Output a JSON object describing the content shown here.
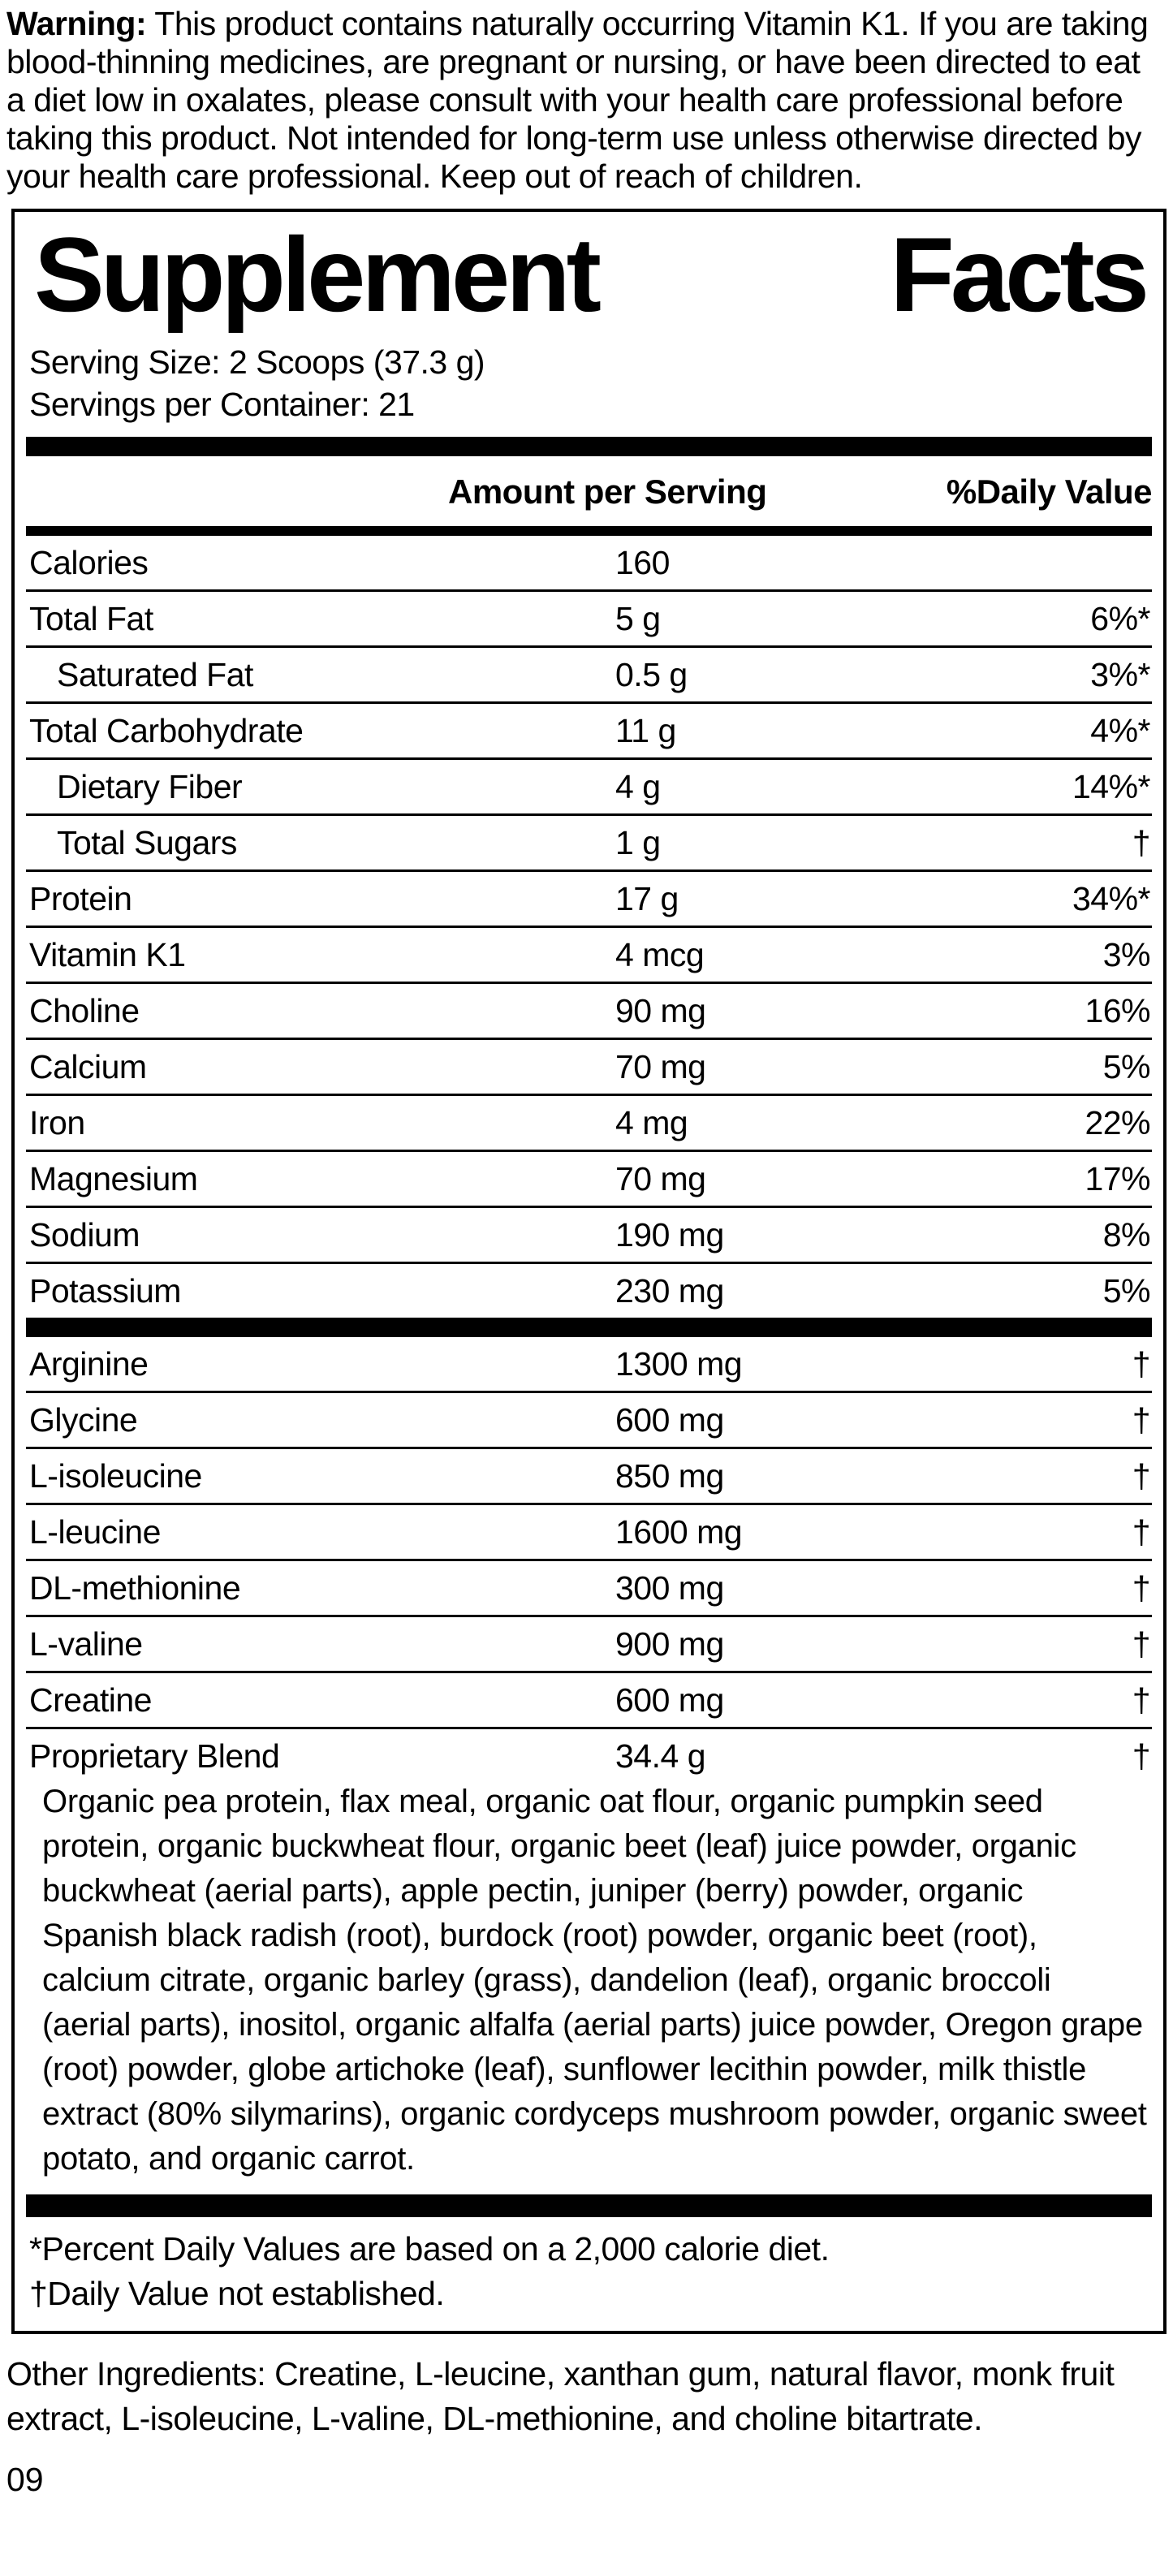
{
  "warning": {
    "label": "Warning:",
    "text": " This product contains naturally occurring Vitamin K1. If you are taking blood-thinning medicines, are pregnant or nursing, or have been directed to eat a diet low in oxalates, please consult with your health care professional before taking this product. Not intended for long-term use unless otherwise directed by your health care professional. Keep out of reach of children."
  },
  "panel": {
    "title": {
      "word1": "Supplement",
      "word2": "Facts"
    },
    "serving_size": "Serving Size: 2 Scoops (37.3 g)",
    "servings_per_container": "Servings per Container: 21",
    "header": {
      "amount": "Amount per Serving",
      "dv": "%Daily Value"
    },
    "rows": [
      {
        "name": "Calories",
        "amount": "160",
        "dv": "",
        "indent": false
      },
      {
        "name": "Total Fat",
        "amount": "5 g",
        "dv": "6%*",
        "indent": false
      },
      {
        "name": "Saturated Fat",
        "amount": "0.5 g",
        "dv": "3%*",
        "indent": true
      },
      {
        "name": "Total Carbohydrate",
        "amount": "11 g",
        "dv": "4%*",
        "indent": false
      },
      {
        "name": "Dietary Fiber",
        "amount": "4 g",
        "dv": "14%*",
        "indent": true
      },
      {
        "name": "Total Sugars",
        "amount": "1 g",
        "dv": "†",
        "indent": true
      },
      {
        "name": "Protein",
        "amount": "17 g",
        "dv": "34%*",
        "indent": false
      },
      {
        "name": "Vitamin K1",
        "amount": "4 mcg",
        "dv": "3%",
        "indent": false
      },
      {
        "name": "Choline",
        "amount": "90 mg",
        "dv": "16%",
        "indent": false
      },
      {
        "name": "Calcium",
        "amount": "70 mg",
        "dv": "5%",
        "indent": false
      },
      {
        "name": "Iron",
        "amount": "4 mg",
        "dv": "22%",
        "indent": false
      },
      {
        "name": "Magnesium",
        "amount": "70 mg",
        "dv": "17%",
        "indent": false
      },
      {
        "name": "Sodium",
        "amount": "190 mg",
        "dv": "8%",
        "indent": false
      },
      {
        "name": "Potassium",
        "amount": "230 mg",
        "dv": "5%",
        "indent": false
      }
    ],
    "amino_rows": [
      {
        "name": "Arginine",
        "amount": "1300 mg",
        "dv": "†",
        "indent": false
      },
      {
        "name": "Glycine",
        "amount": "600 mg",
        "dv": "†",
        "indent": false
      },
      {
        "name": "L-isoleucine",
        "amount": "850 mg",
        "dv": "†",
        "indent": false
      },
      {
        "name": "L-leucine",
        "amount": "1600 mg",
        "dv": "†",
        "indent": false
      },
      {
        "name": "DL-methionine",
        "amount": "300 mg",
        "dv": "†",
        "indent": false
      },
      {
        "name": "L-valine",
        "amount": "900 mg",
        "dv": "†",
        "indent": false
      },
      {
        "name": "Creatine",
        "amount": "600 mg",
        "dv": "†",
        "indent": false
      }
    ],
    "proprietary": {
      "name": "Proprietary Blend",
      "amount": "34.4 g",
      "dv": "†",
      "description": "Organic pea protein, flax meal, organic oat flour, organic pumpkin seed protein, organic buckwheat flour, organic beet (leaf) juice powder, organic buckwheat (aerial parts), apple pectin, juniper (berry) powder, organic Spanish black radish (root), burdock (root) powder, organic beet (root), calcium citrate, organic barley (grass), dandelion (leaf), organic broccoli (aerial parts), inositol, organic alfalfa (aerial parts) juice powder, Oregon grape (root) powder, globe artichoke (leaf), sunflower lecithin powder, milk thistle extract (80% silymarins), organic cordyceps mushroom powder, organic sweet potato, and organic carrot."
    },
    "footnotes": {
      "percent": "*Percent Daily Values are based on a 2,000 calorie diet.",
      "dagger": "†Daily Value not established."
    }
  },
  "other_ingredients": "Other Ingredients: Creatine, L-leucine, xanthan gum, natural flavor, monk fruit extract, L-isoleucine, L-valine, DL-methionine, and choline bitartrate.",
  "page_code": "09",
  "colors": {
    "ink": "#000000",
    "paper": "#ffffff"
  }
}
